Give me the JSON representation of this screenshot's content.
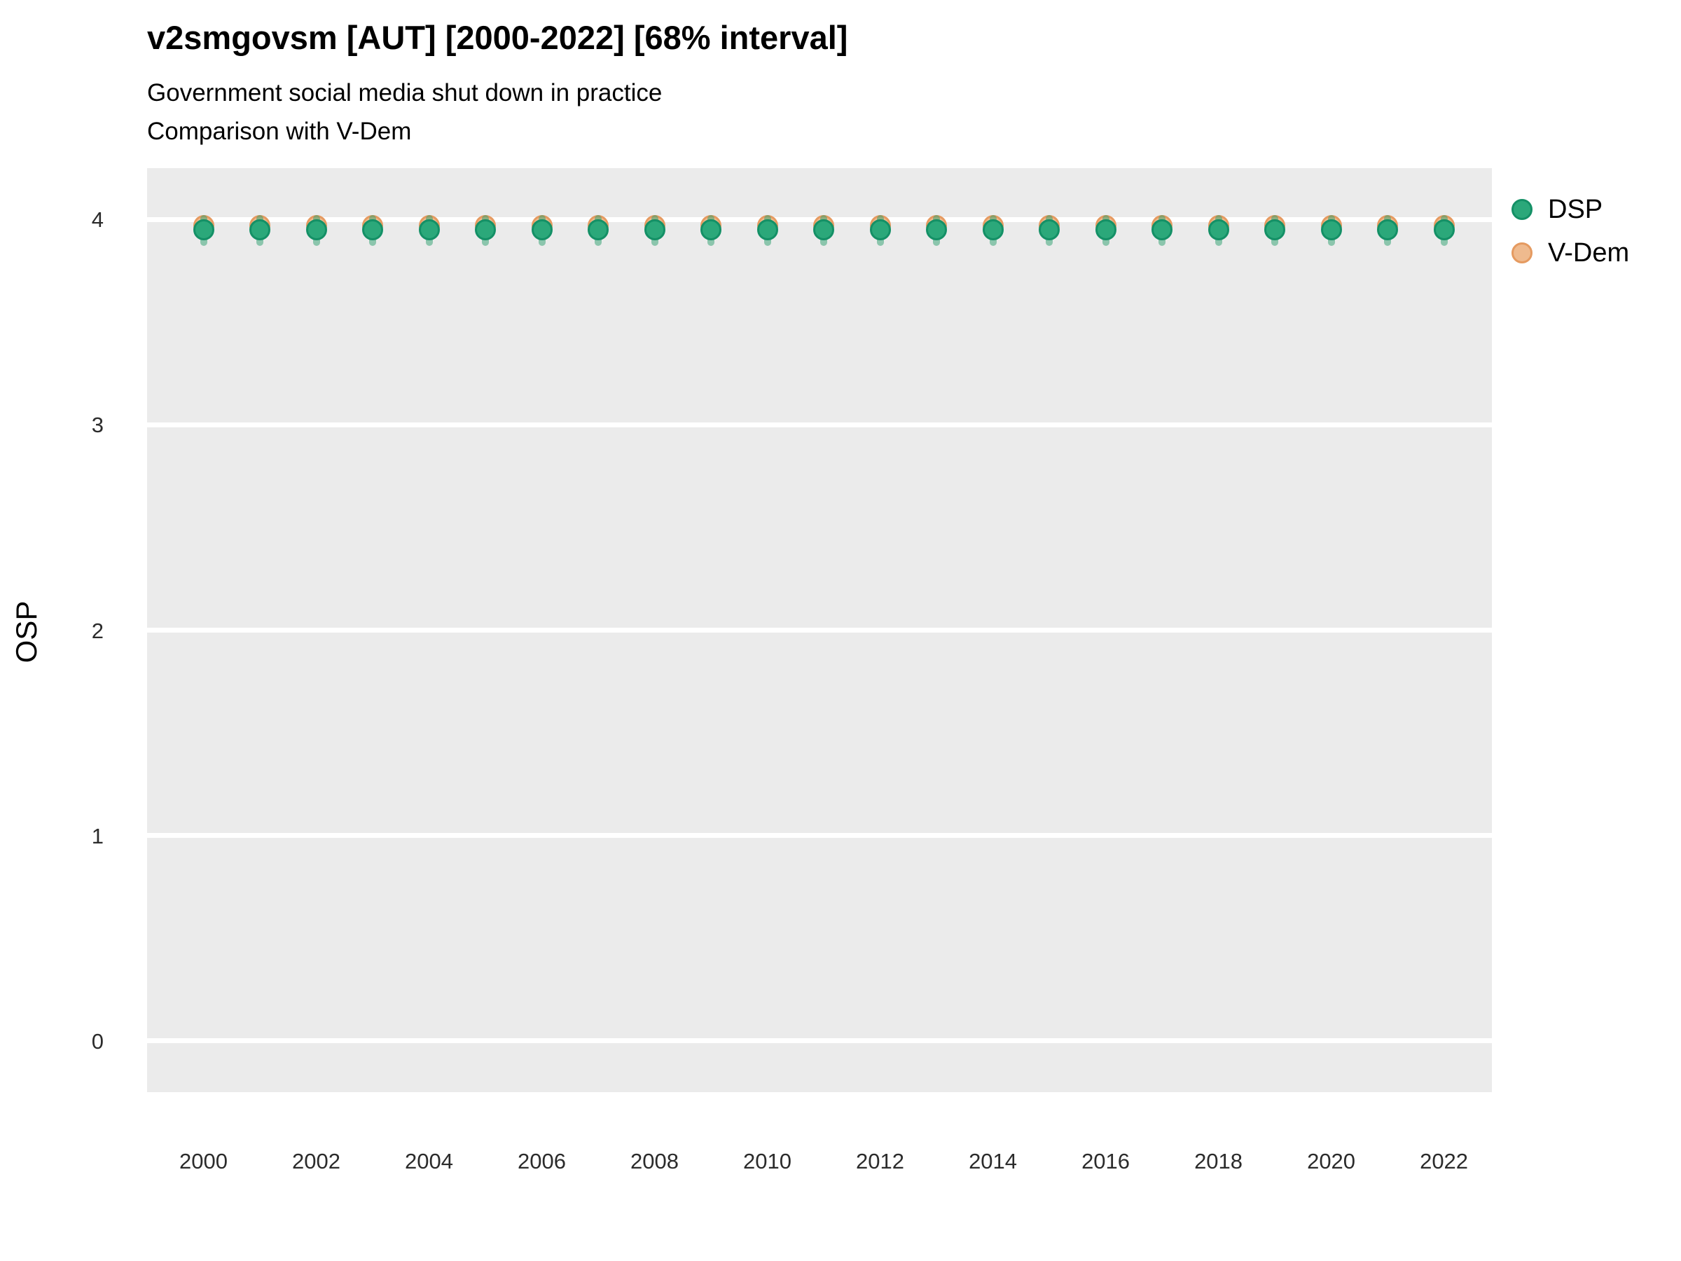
{
  "header": {
    "title": "v2smgovsm [AUT] [2000-2022] [68% interval]",
    "subtitle_line1": "Government social media shut down in practice",
    "subtitle_line2": "Comparison with V-Dem"
  },
  "colors": {
    "panel_background": "#EBEBEB",
    "gridline": "#FFFFFF",
    "dsp_fill": "#2BA87A",
    "dsp_stroke": "#149066",
    "vdem_fill": "#EFBA8E",
    "vdem_stroke": "#E59A60",
    "interval_bar": "rgba(44,160,110,0.5)",
    "tick_text": "#2b2b2b",
    "title_text": "#000000"
  },
  "legend": {
    "items": [
      {
        "label": "DSP",
        "fill": "#2BA87A",
        "stroke": "#149066"
      },
      {
        "label": "V-Dem",
        "fill": "#EFBA8E",
        "stroke": "#E59A60"
      }
    ]
  },
  "chart_data": {
    "type": "scatter",
    "title": "v2smgovsm [AUT] [2000-2022] [68% interval]",
    "subtitle": "Government social media shut down in practice — Comparison with V-Dem",
    "xlabel": "",
    "ylabel": "OSP",
    "x": [
      2000,
      2001,
      2002,
      2003,
      2004,
      2005,
      2006,
      2007,
      2008,
      2009,
      2010,
      2011,
      2012,
      2013,
      2014,
      2015,
      2016,
      2017,
      2018,
      2019,
      2020,
      2021,
      2022
    ],
    "series": [
      {
        "name": "V-Dem",
        "marker": "circle",
        "values": [
          3.97,
          3.97,
          3.97,
          3.97,
          3.97,
          3.97,
          3.97,
          3.97,
          3.97,
          3.97,
          3.97,
          3.97,
          3.97,
          3.97,
          3.97,
          3.97,
          3.97,
          3.97,
          3.97,
          3.97,
          3.97,
          3.97,
          3.97
        ]
      },
      {
        "name": "DSP",
        "marker": "circle",
        "values": [
          3.95,
          3.95,
          3.95,
          3.95,
          3.95,
          3.95,
          3.95,
          3.95,
          3.95,
          3.95,
          3.95,
          3.95,
          3.95,
          3.95,
          3.95,
          3.95,
          3.95,
          3.95,
          3.95,
          3.95,
          3.95,
          3.95,
          3.95
        ],
        "interval_68_low": [
          3.87,
          3.87,
          3.87,
          3.87,
          3.87,
          3.87,
          3.87,
          3.87,
          3.87,
          3.87,
          3.87,
          3.87,
          3.87,
          3.87,
          3.87,
          3.87,
          3.87,
          3.87,
          3.87,
          3.87,
          3.87,
          3.87,
          3.87
        ],
        "interval_68_high": [
          4.02,
          4.02,
          4.02,
          4.02,
          4.02,
          4.02,
          4.02,
          4.02,
          4.02,
          4.02,
          4.02,
          4.02,
          4.02,
          4.02,
          4.02,
          4.02,
          4.02,
          4.02,
          4.02,
          4.02,
          4.02,
          4.02,
          4.02
        ]
      }
    ],
    "yticks": [
      0,
      1,
      2,
      3,
      4
    ],
    "xticks": [
      2000,
      2002,
      2004,
      2006,
      2008,
      2010,
      2012,
      2014,
      2016,
      2018,
      2020,
      2022
    ],
    "ylim": [
      -0.25,
      4.25
    ],
    "xlim": [
      1999.0,
      2022.85
    ],
    "grid": "horizontal-major-white",
    "legend_position": "right"
  }
}
